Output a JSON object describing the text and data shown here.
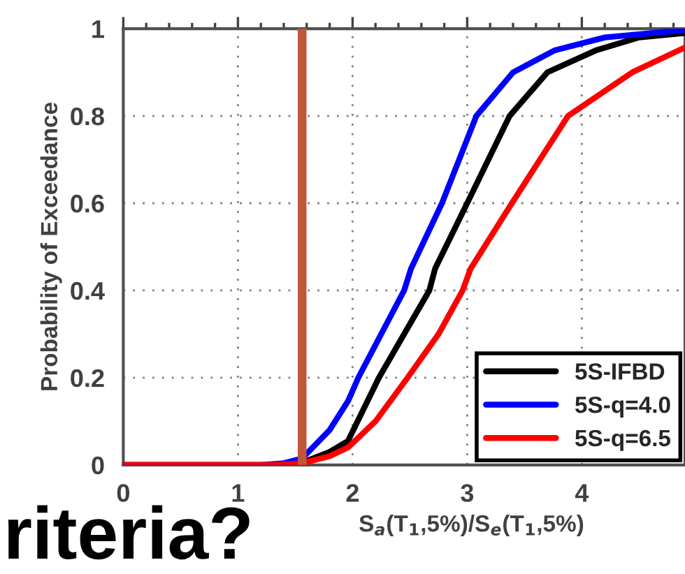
{
  "chart_data": {
    "type": "line",
    "xlabel": "S$_{a}$(T$_{1}$,5%)/S$_{e}$(T$_{1}$,5%)",
    "ylabel": "Probability of Exceedance",
    "annotations": [
      "riteria?"
    ],
    "series": [
      {
        "name": "5S-IFBD",
        "color": "#000000",
        "x": [
          0,
          1.3,
          1.56,
          1.8,
          1.96,
          2.23,
          2.45,
          2.67,
          2.72,
          3.0,
          3.37,
          3.7,
          4.12,
          4.5,
          4.9
        ],
        "values": [
          0,
          0,
          0.005,
          0.03,
          0.055,
          0.2,
          0.3,
          0.4,
          0.45,
          0.6,
          0.8,
          0.9,
          0.95,
          0.98,
          0.99
        ]
      },
      {
        "name": "5S-q=4.0",
        "color": "#0000ff",
        "x": [
          0,
          1.2,
          1.4,
          1.56,
          1.8,
          1.96,
          2.05,
          2.25,
          2.45,
          2.51,
          2.78,
          3.08,
          3.4,
          3.76,
          4.2,
          4.9
        ],
        "values": [
          0,
          0,
          0.004,
          0.015,
          0.08,
          0.146,
          0.2,
          0.3,
          0.4,
          0.45,
          0.6,
          0.8,
          0.9,
          0.95,
          0.98,
          0.997
        ]
      },
      {
        "name": "5S-q=6.5",
        "color": "#ff0000",
        "x": [
          0,
          1.3,
          1.56,
          1.8,
          1.96,
          2.2,
          2.48,
          2.75,
          2.96,
          3.03,
          3.39,
          3.88,
          4.44,
          4.9
        ],
        "values": [
          0,
          0,
          0.004,
          0.02,
          0.04,
          0.1,
          0.2,
          0.3,
          0.4,
          0.45,
          0.6,
          0.8,
          0.9,
          0.957
        ]
      }
    ],
    "ref_lines": [
      {
        "axis": "x",
        "value": 1.56,
        "color": "#c0573a"
      }
    ],
    "xlim": [
      0,
      4.9
    ],
    "xticks": [
      0,
      1,
      2,
      3,
      4
    ],
    "ylim": [
      0,
      1
    ],
    "yticks": [
      0,
      0.2,
      0.4,
      0.6,
      0.8,
      1
    ],
    "grid": true,
    "legend": "bottom right",
    "line_style": "solid",
    "marker": "none"
  }
}
